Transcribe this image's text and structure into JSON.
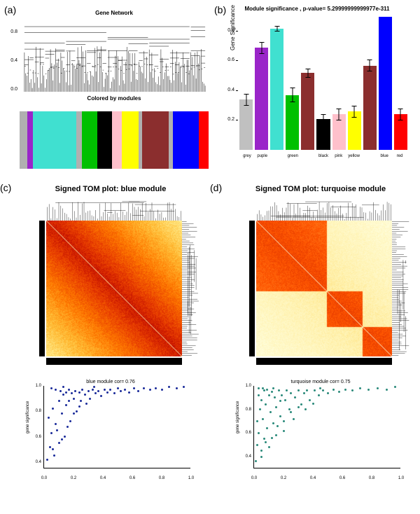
{
  "panel_a": {
    "label": "(a)",
    "dendro_title": "Gene Network",
    "modules_title": "Colored by modules",
    "yticks": [
      "0.0",
      "0.4",
      "0.8"
    ],
    "module_bands": [
      {
        "color": "#b0b0b0",
        "width": 4
      },
      {
        "color": "#9a25c9",
        "width": 3
      },
      {
        "color": "#40e0d0",
        "width": 23
      },
      {
        "color": "#b0b0b0",
        "width": 3
      },
      {
        "color": "#00c000",
        "width": 8
      },
      {
        "color": "#000000",
        "width": 8
      },
      {
        "color": "#ffc0cb",
        "width": 5
      },
      {
        "color": "#ffff00",
        "width": 9
      },
      {
        "color": "#b0b0b0",
        "width": 2
      },
      {
        "color": "#8b2e2e",
        "width": 14
      },
      {
        "color": "#b0b0b0",
        "width": 2
      },
      {
        "color": "#0000ff",
        "width": 14
      },
      {
        "color": "#ff0000",
        "width": 5
      }
    ]
  },
  "panel_b": {
    "label": "(b)",
    "title": "Module significance , p-value= 5.29999999999977e-311",
    "ylabel": "Gene Significance",
    "ylim": [
      0,
      0.9
    ],
    "yticks": [
      "0.2",
      "0.4",
      "0.6",
      "0.8"
    ],
    "bars": [
      {
        "label": "grey",
        "value": 0.34,
        "err": 0.04,
        "color": "#c0c0c0"
      },
      {
        "label": "puple",
        "value": 0.69,
        "err": 0.04,
        "color": "#9a25c9"
      },
      {
        "label": "",
        "value": 0.82,
        "err": 0.02,
        "color": "#40e0d0"
      },
      {
        "label": "green",
        "value": 0.37,
        "err": 0.05,
        "color": "#00c000"
      },
      {
        "label": "",
        "value": 0.52,
        "err": 0.03,
        "color": "#8b2e2e"
      },
      {
        "label": "black",
        "value": 0.21,
        "err": 0.03,
        "color": "#000000"
      },
      {
        "label": "pink",
        "value": 0.24,
        "err": 0.04,
        "color": "#ffc0cb"
      },
      {
        "label": "yellow",
        "value": 0.26,
        "err": 0.04,
        "color": "#ffff00"
      },
      {
        "label": "",
        "value": 0.57,
        "err": 0.04,
        "color": "#8b2e2e"
      },
      {
        "label": "blue",
        "value": 0.9,
        "err": 0.0,
        "color": "#0000ff"
      },
      {
        "label": "red",
        "value": 0.24,
        "err": 0.04,
        "color": "#ff0000"
      }
    ]
  },
  "panel_c": {
    "label": "(c)",
    "title": "Signed TOM plot: blue module",
    "heat_colors": [
      "#ffffcc",
      "#ffeb8a",
      "#ffbb33",
      "#ff7a00",
      "#e63900",
      "#b30000"
    ],
    "scatter": {
      "title": "blue module  cor= 0.76",
      "ylabel": "gene significance",
      "point_color": "#1a2a9a",
      "xticks": [
        "0.0",
        "0.2",
        "0.4",
        "0.6",
        "0.8",
        "1.0"
      ],
      "yticks": [
        "0.4",
        "0.6",
        "0.8",
        "1.0"
      ],
      "ylim": [
        0.35,
        1.0
      ],
      "points": [
        [
          0.02,
          0.42
        ],
        [
          0.03,
          0.75
        ],
        [
          0.04,
          0.52
        ],
        [
          0.05,
          0.98
        ],
        [
          0.05,
          0.63
        ],
        [
          0.06,
          0.82
        ],
        [
          0.07,
          0.45
        ],
        [
          0.08,
          0.97
        ],
        [
          0.08,
          0.7
        ],
        [
          0.1,
          0.88
        ],
        [
          0.1,
          0.55
        ],
        [
          0.11,
          0.96
        ],
        [
          0.12,
          0.78
        ],
        [
          0.13,
          0.93
        ],
        [
          0.14,
          0.6
        ],
        [
          0.15,
          0.95
        ],
        [
          0.15,
          0.85
        ],
        [
          0.17,
          0.97
        ],
        [
          0.18,
          0.72
        ],
        [
          0.19,
          0.94
        ],
        [
          0.2,
          0.9
        ],
        [
          0.21,
          0.96
        ],
        [
          0.22,
          0.8
        ],
        [
          0.24,
          0.95
        ],
        [
          0.25,
          0.88
        ],
        [
          0.26,
          0.97
        ],
        [
          0.28,
          0.93
        ],
        [
          0.3,
          0.96
        ],
        [
          0.31,
          0.9
        ],
        [
          0.33,
          0.97
        ],
        [
          0.35,
          0.94
        ],
        [
          0.37,
          0.96
        ],
        [
          0.39,
          0.92
        ],
        [
          0.41,
          0.97
        ],
        [
          0.43,
          0.95
        ],
        [
          0.45,
          0.97
        ],
        [
          0.48,
          0.94
        ],
        [
          0.5,
          0.98
        ],
        [
          0.52,
          0.96
        ],
        [
          0.55,
          0.97
        ],
        [
          0.58,
          0.95
        ],
        [
          0.61,
          0.98
        ],
        [
          0.64,
          0.96
        ],
        [
          0.68,
          0.98
        ],
        [
          0.72,
          0.97
        ],
        [
          0.76,
          0.98
        ],
        [
          0.8,
          0.97
        ],
        [
          0.85,
          0.99
        ],
        [
          0.9,
          0.98
        ],
        [
          0.95,
          0.99
        ],
        [
          0.06,
          0.5
        ],
        [
          0.09,
          0.65
        ],
        [
          0.12,
          0.58
        ],
        [
          0.16,
          0.68
        ],
        [
          0.2,
          0.78
        ],
        [
          0.24,
          0.84
        ],
        [
          0.13,
          0.99
        ],
        [
          0.17,
          0.88
        ],
        [
          0.29,
          0.86
        ],
        [
          0.34,
          0.99
        ]
      ]
    }
  },
  "panel_d": {
    "label": "(d)",
    "title": "Signed TOM plot: turquoise module",
    "heat_colors": [
      "#ffffe0",
      "#fff2b0",
      "#ffd966",
      "#ff9933",
      "#ff5500",
      "#cc2200"
    ],
    "scatter": {
      "title": "turquoise module  cor= 0.75",
      "ylabel": "gene significance",
      "point_color": "#2a8a7a",
      "xticks": [
        "0.0",
        "0.2",
        "0.4",
        "0.6",
        "0.8",
        "1.0"
      ],
      "yticks": [
        "0.4",
        "0.6",
        "0.8",
        "1.0"
      ],
      "ylim": [
        0.3,
        1.0
      ],
      "points": [
        [
          0.01,
          0.36
        ],
        [
          0.02,
          0.7
        ],
        [
          0.02,
          0.5
        ],
        [
          0.03,
          0.92
        ],
        [
          0.03,
          0.6
        ],
        [
          0.04,
          0.8
        ],
        [
          0.05,
          0.45
        ],
        [
          0.05,
          0.88
        ],
        [
          0.06,
          0.72
        ],
        [
          0.07,
          0.96
        ],
        [
          0.07,
          0.55
        ],
        [
          0.08,
          0.84
        ],
        [
          0.09,
          0.64
        ],
        [
          0.1,
          0.92
        ],
        [
          0.1,
          0.48
        ],
        [
          0.11,
          0.78
        ],
        [
          0.12,
          0.95
        ],
        [
          0.13,
          0.68
        ],
        [
          0.14,
          0.9
        ],
        [
          0.15,
          0.58
        ],
        [
          0.15,
          0.82
        ],
        [
          0.17,
          0.96
        ],
        [
          0.18,
          0.74
        ],
        [
          0.19,
          0.92
        ],
        [
          0.2,
          0.62
        ],
        [
          0.21,
          0.88
        ],
        [
          0.22,
          0.96
        ],
        [
          0.24,
          0.8
        ],
        [
          0.25,
          0.94
        ],
        [
          0.27,
          0.72
        ],
        [
          0.28,
          0.9
        ],
        [
          0.3,
          0.96
        ],
        [
          0.32,
          0.84
        ],
        [
          0.34,
          0.94
        ],
        [
          0.36,
          0.96
        ],
        [
          0.38,
          0.88
        ],
        [
          0.41,
          0.96
        ],
        [
          0.44,
          0.92
        ],
        [
          0.47,
          0.96
        ],
        [
          0.5,
          0.94
        ],
        [
          0.54,
          0.97
        ],
        [
          0.58,
          0.95
        ],
        [
          0.62,
          0.97
        ],
        [
          0.67,
          0.96
        ],
        [
          0.72,
          0.98
        ],
        [
          0.78,
          0.97
        ],
        [
          0.84,
          0.98
        ],
        [
          0.9,
          0.97
        ],
        [
          0.96,
          0.99
        ],
        [
          0.05,
          0.4
        ],
        [
          0.08,
          0.52
        ],
        [
          0.12,
          0.56
        ],
        [
          0.16,
          0.66
        ],
        [
          0.2,
          0.7
        ],
        [
          0.25,
          0.78
        ],
        [
          0.3,
          0.82
        ],
        [
          0.03,
          0.98
        ],
        [
          0.06,
          0.98
        ],
        [
          0.09,
          0.97
        ],
        [
          0.13,
          0.98
        ],
        [
          0.18,
          0.87
        ],
        [
          0.35,
          0.8
        ],
        [
          0.4,
          0.85
        ],
        [
          0.45,
          0.98
        ]
      ]
    }
  }
}
